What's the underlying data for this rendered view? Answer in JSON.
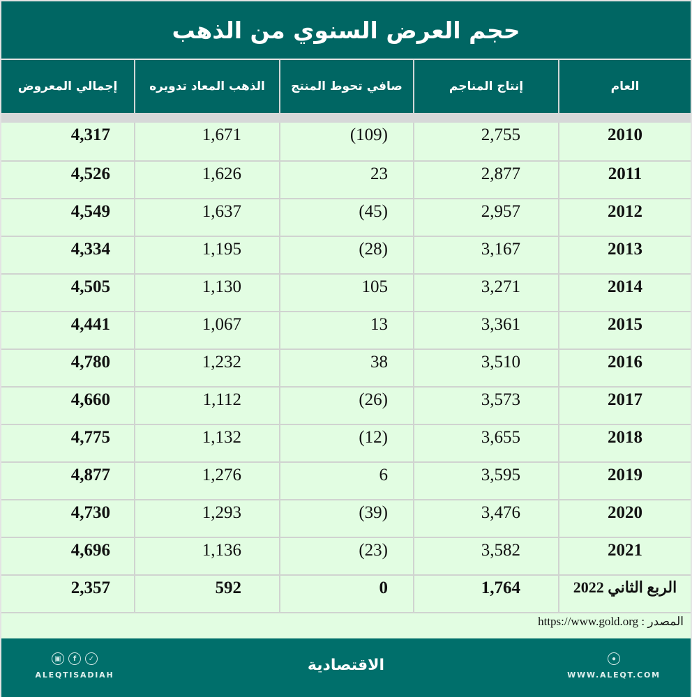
{
  "title": "حجم العرض السنوي من الذهب",
  "table": {
    "headers": {
      "year": "العام",
      "mine_production": "إنتاج المناجم",
      "net_producer_hedging": "صافي تحوط المنتج",
      "recycled_gold": "الذهب المعاد تدويره",
      "total_supply": "إجمالي المعروض"
    },
    "rows": [
      {
        "year": "2010",
        "mine_production": "2,755",
        "net_producer_hedging": "(109)",
        "recycled_gold": "1,671",
        "total_supply": "4,317"
      },
      {
        "year": "2011",
        "mine_production": "2,877",
        "net_producer_hedging": "23",
        "recycled_gold": "1,626",
        "total_supply": "4,526"
      },
      {
        "year": "2012",
        "mine_production": "2,957",
        "net_producer_hedging": "(45)",
        "recycled_gold": "1,637",
        "total_supply": "4,549"
      },
      {
        "year": "2013",
        "mine_production": "3,167",
        "net_producer_hedging": "(28)",
        "recycled_gold": "1,195",
        "total_supply": "4,334"
      },
      {
        "year": "2014",
        "mine_production": "3,271",
        "net_producer_hedging": "105",
        "recycled_gold": "1,130",
        "total_supply": "4,505"
      },
      {
        "year": "2015",
        "mine_production": "3,361",
        "net_producer_hedging": "13",
        "recycled_gold": "1,067",
        "total_supply": "4,441"
      },
      {
        "year": "2016",
        "mine_production": "3,510",
        "net_producer_hedging": "38",
        "recycled_gold": "1,232",
        "total_supply": "4,780"
      },
      {
        "year": "2017",
        "mine_production": "3,573",
        "net_producer_hedging": "(26)",
        "recycled_gold": "1,112",
        "total_supply": "4,660"
      },
      {
        "year": "2018",
        "mine_production": "3,655",
        "net_producer_hedging": "(12)",
        "recycled_gold": "1,132",
        "total_supply": "4,775"
      },
      {
        "year": "2019",
        "mine_production": "3,595",
        "net_producer_hedging": "6",
        "recycled_gold": "1,276",
        "total_supply": "4,877"
      },
      {
        "year": "2020",
        "mine_production": "3,476",
        "net_producer_hedging": "(39)",
        "recycled_gold": "1,293",
        "total_supply": "4,730"
      },
      {
        "year": "2021",
        "mine_production": "3,582",
        "net_producer_hedging": "(23)",
        "recycled_gold": "1,136",
        "total_supply": "4,696"
      },
      {
        "year": "الربع الثاني 2022",
        "mine_production": "1,764",
        "net_producer_hedging": "0",
        "recycled_gold": "592",
        "total_supply": "2,357"
      }
    ]
  },
  "source": {
    "label": "المصدر :",
    "url": "https://www.gold.org"
  },
  "footer": {
    "social_icons": [
      "instagram-icon",
      "facebook-icon",
      "twitter-icon"
    ],
    "brand_en": "ALEQTISADIAH",
    "brand_ar": "الاقتصادية",
    "website_icon": "globe-icon",
    "website": "WWW.ALEQT.COM"
  },
  "colors": {
    "header_bg": "#006663",
    "row_bg": "#e2fde2",
    "footer_bg": "#006f6b",
    "grid": "#d0d3d0"
  }
}
